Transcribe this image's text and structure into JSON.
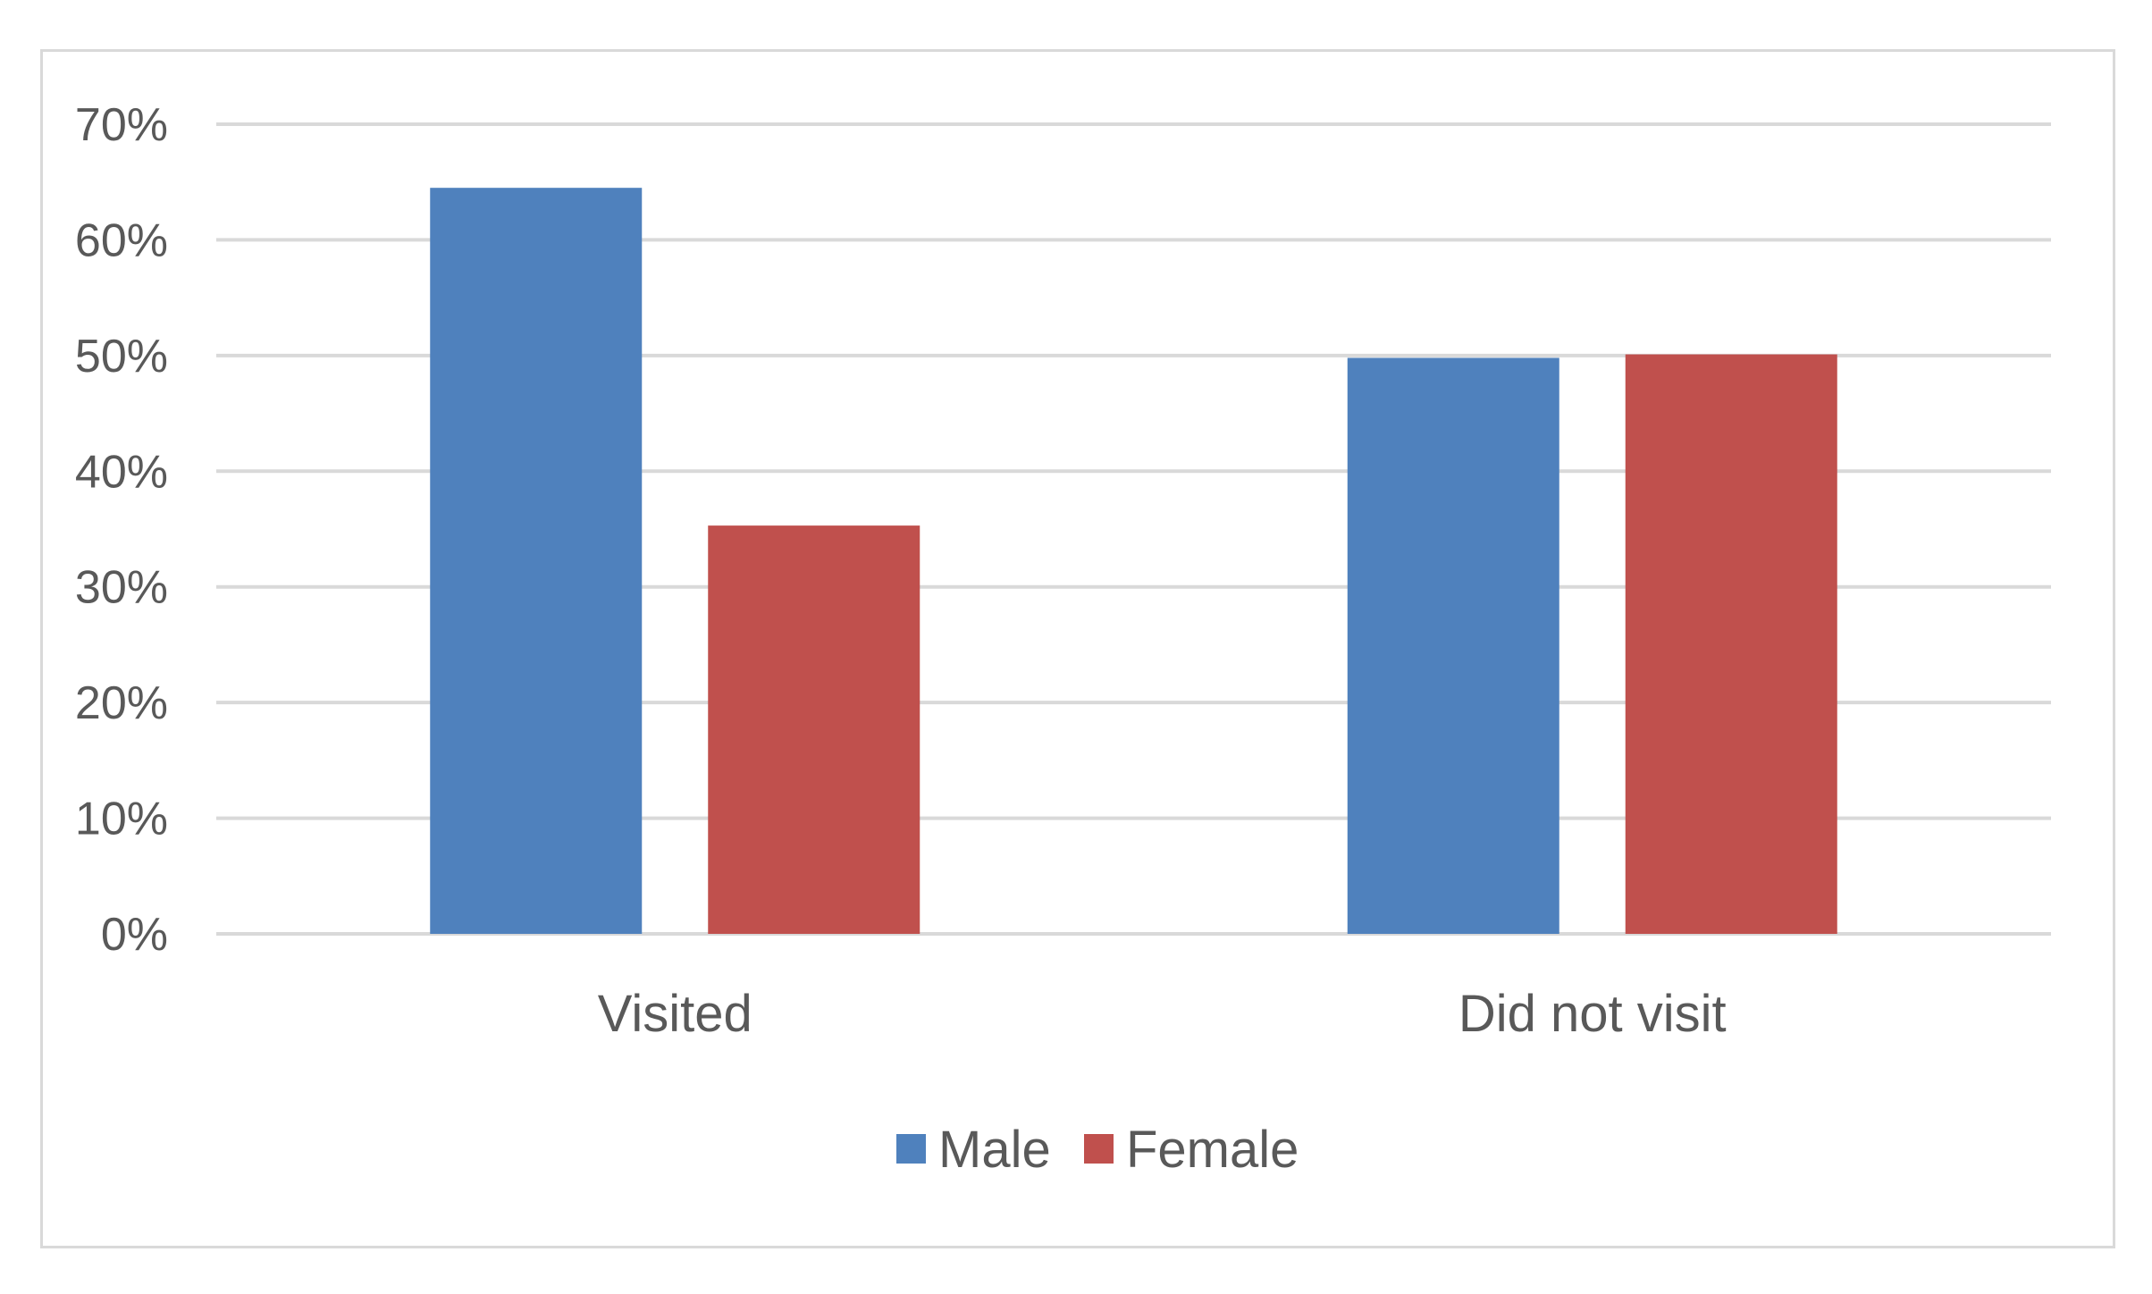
{
  "chart_data": {
    "type": "bar",
    "title": "",
    "xlabel": "",
    "ylabel": "",
    "categories": [
      "Visited",
      "Did not visit"
    ],
    "series": [
      {
        "name": "Male",
        "values": [
          0.645,
          0.498
        ],
        "color": "#4f81bd"
      },
      {
        "name": "Female",
        "values": [
          0.353,
          0.501
        ],
        "color": "#c0504d"
      }
    ],
    "ylim": [
      0,
      0.7
    ],
    "yticks": [
      0,
      0.1,
      0.2,
      0.3,
      0.4,
      0.5,
      0.6,
      0.7
    ],
    "ytick_labels": [
      "0%",
      "10%",
      "20%",
      "30%",
      "40%",
      "50%",
      "60%",
      "70%"
    ],
    "grid": true,
    "legend": "bottom-center",
    "gridline_color": "#d9d9d9",
    "text_color": "#595959"
  }
}
